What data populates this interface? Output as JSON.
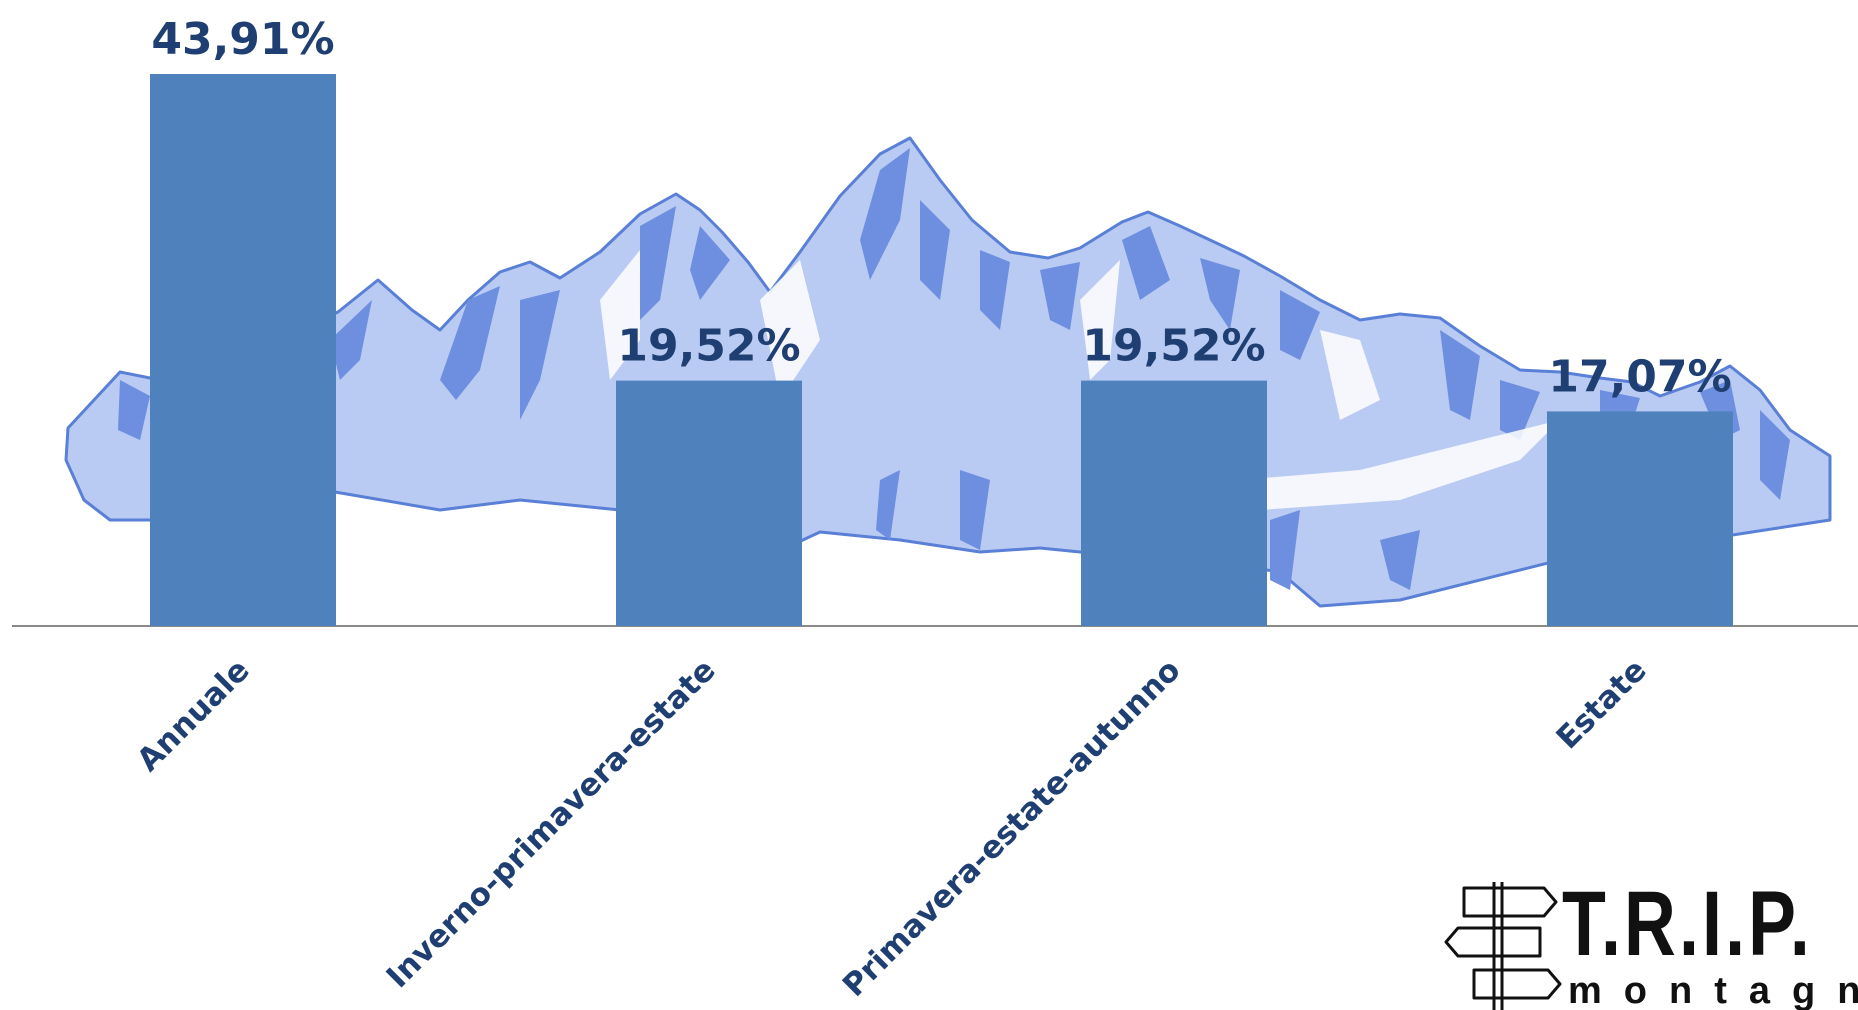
{
  "chart_data": {
    "type": "bar",
    "categories": [
      "Annuale",
      "Inverno-primavera-estate",
      "Primavera-estate-autunno",
      "Estate"
    ],
    "values": [
      43.91,
      19.52,
      19.52,
      17.07
    ],
    "value_labels": [
      "43,91%",
      "19,52%",
      "19,52%",
      "17,07%"
    ],
    "ylim": [
      0,
      45
    ],
    "grid": false,
    "bar_color": "#4f81bd",
    "label_color": "#1f3f73"
  },
  "logo": {
    "title": "T.R.I.P.",
    "subtitle": "montagna"
  },
  "background": {
    "illustration": "mountain-range",
    "colors": {
      "light": "#b9cbf2",
      "dark": "#6e8fe0",
      "outline": "#5a7fd6"
    }
  }
}
